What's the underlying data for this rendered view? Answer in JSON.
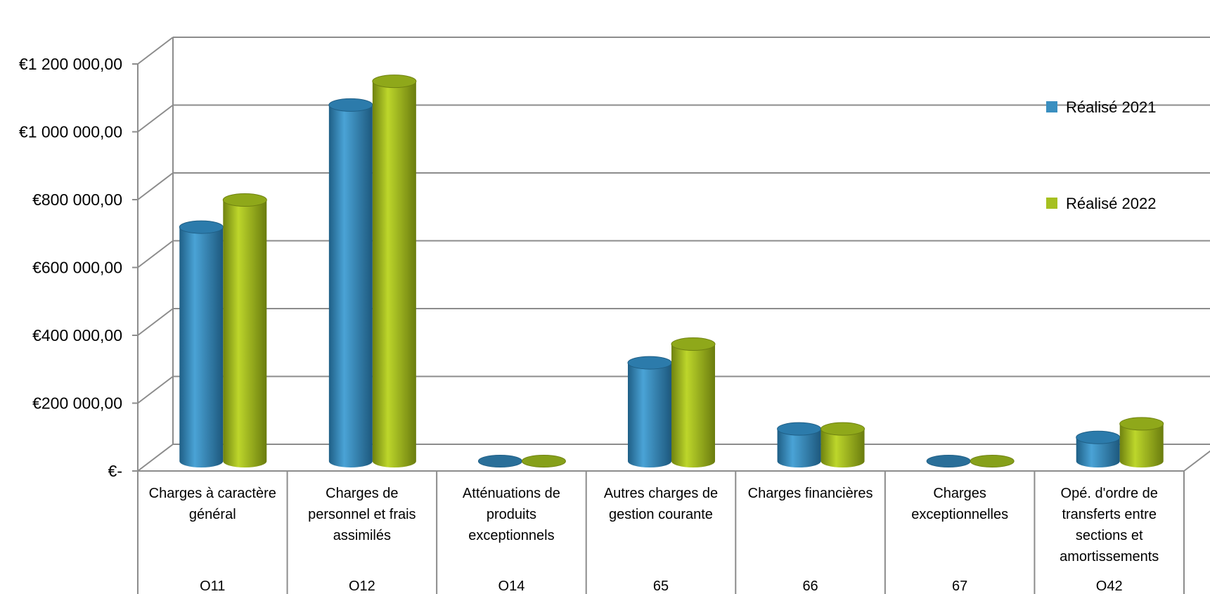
{
  "chart_data": {
    "type": "bar",
    "style": "3d-cylinder",
    "categories": [
      "Charges à caractère général",
      "Charges de personnel et frais assimilés",
      "Atténuations de produits exceptionnels",
      "Autres charges de gestion courante",
      "Charges financières",
      "Charges exceptionnelles",
      "Opé. d'ordre de transferts entre sections et amortissements"
    ],
    "category_codes": [
      "O11",
      "O12",
      "O14",
      "65",
      "66",
      "67",
      "O42"
    ],
    "series": [
      {
        "name": "Réalisé 2021",
        "color": "#3a8fc0",
        "values": [
          690000,
          1050000,
          0,
          290000,
          95000,
          0,
          70000
        ]
      },
      {
        "name": "Réalisé 2022",
        "color": "#a6c020",
        "values": [
          770000,
          1120000,
          0,
          345000,
          95000,
          0,
          110000
        ]
      }
    ],
    "yticks": [
      {
        "value": 0,
        "label": "€-"
      },
      {
        "value": 200000,
        "label": "€200 000,00"
      },
      {
        "value": 400000,
        "label": "€400 000,00"
      },
      {
        "value": 600000,
        "label": "€600 000,00"
      },
      {
        "value": 800000,
        "label": "€800 000,00"
      },
      {
        "value": 1000000,
        "label": "€1 000 000,00"
      },
      {
        "value": 1200000,
        "label": "€1 200 000,00"
      }
    ],
    "ylim": [
      0,
      1200000
    ],
    "grid": true,
    "legend_position": "right"
  }
}
